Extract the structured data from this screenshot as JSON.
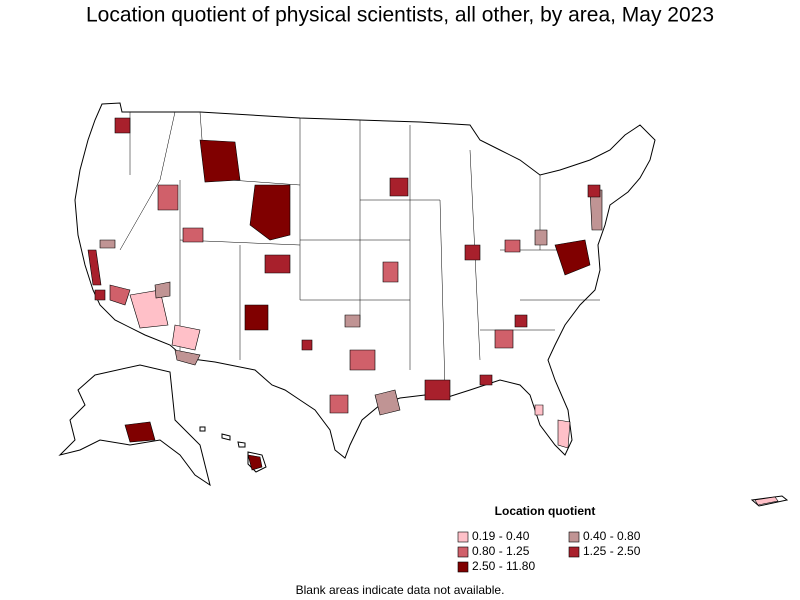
{
  "title": "Location quotient of physical scientists, all other, by area, May 2023",
  "legend": {
    "title": "Location quotient",
    "items": [
      {
        "label": "0.19 - 0.40",
        "color": "#ffc0c8"
      },
      {
        "label": "0.40 - 0.80",
        "color": "#c09494"
      },
      {
        "label": "0.80 - 1.25",
        "color": "#d0606a"
      },
      {
        "label": "1.25 - 2.50",
        "color": "#a8202c"
      },
      {
        "label": "2.50 - 11.80",
        "color": "#800000"
      }
    ]
  },
  "note": "Blank areas indicate data not available."
}
